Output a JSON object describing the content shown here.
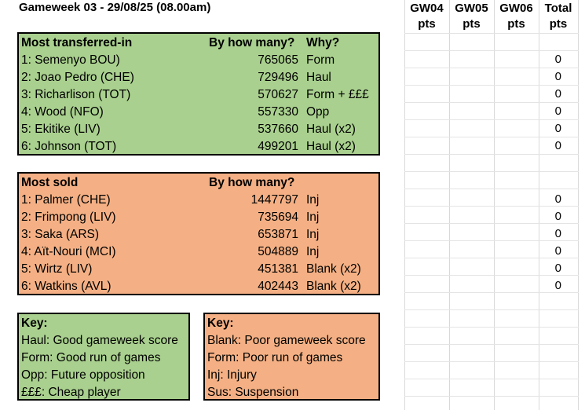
{
  "title": "Gameweek 03 - 29/08/25 (08.00am)",
  "transferred_in": {
    "header": {
      "label": "Most transferred-in",
      "count": "By how many?",
      "why": "Why?"
    },
    "rows": [
      {
        "name": "1: Semenyo BOU)",
        "count": "765065",
        "why": "Form"
      },
      {
        "name": "2: Joao Pedro (CHE)",
        "count": "729496",
        "why": "Haul"
      },
      {
        "name": "3: Richarlison (TOT)",
        "count": "570627",
        "why": "Form + £££"
      },
      {
        "name": "4: Wood (NFO)",
        "count": "557330",
        "why": "Opp"
      },
      {
        "name": "5: Ekitike (LIV)",
        "count": "537660",
        "why": "Haul (x2)"
      },
      {
        "name": "6: Johnson (TOT)",
        "count": "499201",
        "why": "Haul (x2)"
      }
    ]
  },
  "sold": {
    "header": {
      "label": "Most sold",
      "count": "By how many?"
    },
    "rows": [
      {
        "name": "1: Palmer (CHE)",
        "count": "1447797",
        "why": "Inj"
      },
      {
        "name": "2: Frimpong (LIV)",
        "count": "735694",
        "why": "Inj"
      },
      {
        "name": "3: Saka (ARS)",
        "count": "653871",
        "why": "Inj"
      },
      {
        "name": "4: Aït-Nouri (MCI)",
        "count": "504889",
        "why": "Inj"
      },
      {
        "name": "5: Wirtz (LIV)",
        "count": "451381",
        "why": "Blank (x2)"
      },
      {
        "name": "6: Watkins (AVL)",
        "count": "402443",
        "why": "Blank (x2)"
      }
    ]
  },
  "key_good": {
    "title": "Key:",
    "lines": [
      "Haul: Good gameweek score",
      "Form: Good run of games",
      "Opp: Future opposition",
      "£££: Cheap player"
    ]
  },
  "key_bad": {
    "title": "Key:",
    "lines": [
      "Blank: Poor gameweek score",
      "Form: Poor run of games",
      "Inj: Injury",
      "Sus: Suspension"
    ]
  },
  "score_columns": {
    "headers": [
      {
        "gw": "GW04",
        "unit": "pts"
      },
      {
        "gw": "GW05",
        "unit": "pts"
      },
      {
        "gw": "GW06",
        "unit": "pts"
      },
      {
        "gw": "Total",
        "unit": "pts"
      }
    ],
    "in_totals": [
      "0",
      "0",
      "0",
      "0",
      "0",
      "0"
    ],
    "sold_totals": [
      "0",
      "0",
      "0",
      "0",
      "0",
      "0"
    ]
  },
  "colors": {
    "green": "#a9d08e",
    "orange": "#f4b084"
  }
}
